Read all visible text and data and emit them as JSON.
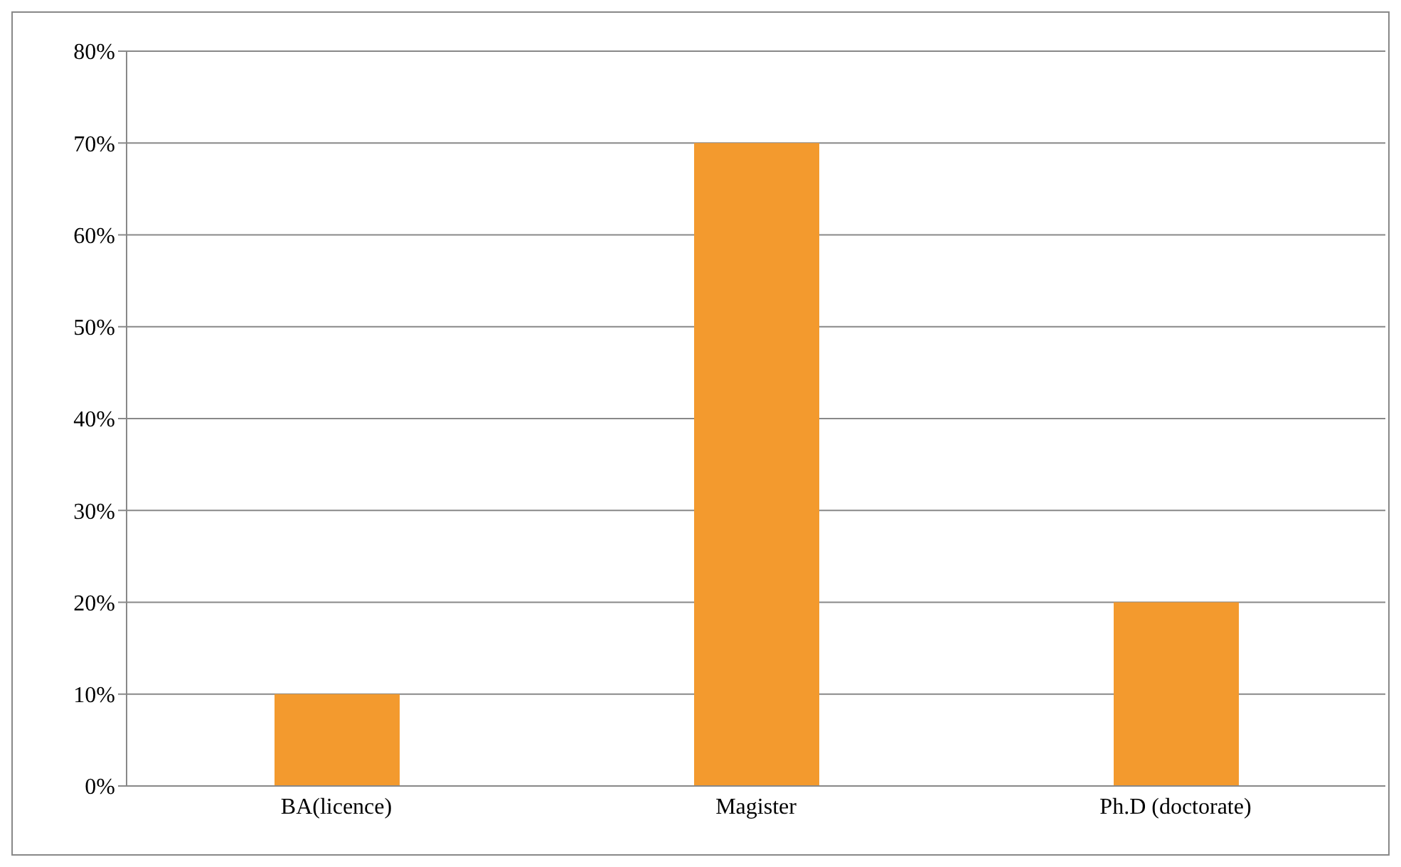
{
  "chart_data": {
    "type": "bar",
    "categories": [
      "BA(licence)",
      "Magister",
      "Ph.D (doctorate)"
    ],
    "values": [
      10,
      70,
      20
    ],
    "color": "#f39a2e",
    "ylim": [
      0,
      80
    ],
    "yticks": [
      {
        "value": 0,
        "label": "0%"
      },
      {
        "value": 10,
        "label": "10%"
      },
      {
        "value": 20,
        "label": "20%"
      },
      {
        "value": 30,
        "label": "30%"
      },
      {
        "value": 40,
        "label": "40%"
      },
      {
        "value": 50,
        "label": "50%"
      },
      {
        "value": 60,
        "label": "60%"
      },
      {
        "value": 70,
        "label": "70%"
      },
      {
        "value": 80,
        "label": "80%"
      }
    ],
    "grid": "y"
  }
}
